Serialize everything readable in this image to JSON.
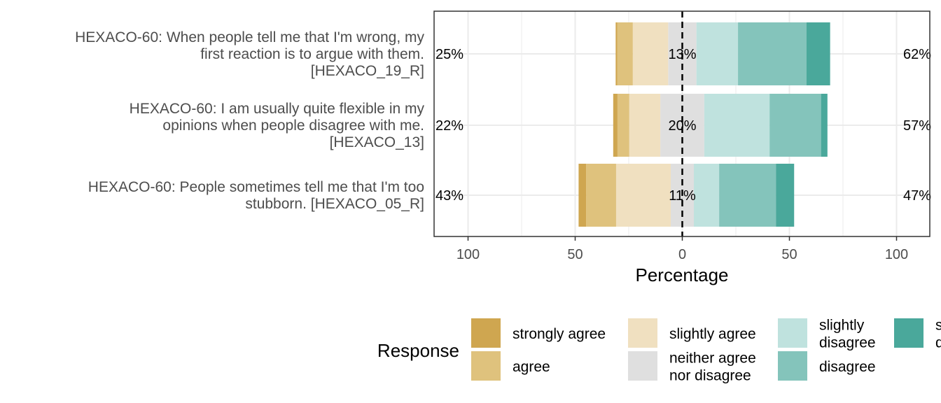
{
  "chart_data": {
    "type": "bar",
    "orientation": "horizontal",
    "stacked": "diverging",
    "xlabel": "Percentage",
    "xlim": [
      -100,
      100
    ],
    "x_ticks": [
      -100,
      -50,
      0,
      50,
      100
    ],
    "x_tick_labels": [
      "100",
      "50",
      "0",
      "50",
      "100"
    ],
    "grid": true,
    "legend": {
      "title": "Response",
      "position": "bottom",
      "entries": [
        {
          "label": "strongly agree",
          "color": "#cfa650"
        },
        {
          "label": "agree",
          "color": "#dfc27d"
        },
        {
          "label": "slightly agree",
          "color": "#f0e0c0"
        },
        {
          "label": "neither agree nor disagree",
          "color": "#dfdfdf"
        },
        {
          "label": "slightly disagree",
          "color": "#bfe2de"
        },
        {
          "label": "disagree",
          "color": "#84c4bb"
        },
        {
          "label": "strongly disagree",
          "color": "#4aa89b"
        }
      ]
    },
    "series_names": [
      "strongly agree",
      "agree",
      "slightly agree",
      "neither agree nor disagree",
      "slightly disagree",
      "disagree",
      "strongly disagree"
    ],
    "categories": [
      "HEXACO-60: When people tell me that I'm wrong, my first reaction is to argue with them. [HEXACO_19_R]",
      "HEXACO-60: I am usually quite flexible in my opinions when people disagree with me. [HEXACO_13]",
      "HEXACO-60: People sometimes tell me that I'm too stubborn. [HEXACO_05_R]"
    ],
    "category_lines": [
      [
        "HEXACO-60: When people tell me that I'm wrong, my",
        "first reaction is to argue with them.",
        "[HEXACO_19_R]"
      ],
      [
        "HEXACO-60: I am usually quite flexible in my",
        "opinions when people disagree with me.",
        "[HEXACO_13]"
      ],
      [
        "HEXACO-60: People sometimes tell me that I'm too",
        "stubborn. [HEXACO_05_R]"
      ]
    ],
    "values": [
      [
        0.7,
        7.3,
        16.5,
        13.2,
        19.4,
        32.0,
        11.0
      ],
      [
        2.0,
        5.5,
        14.5,
        20.5,
        30.5,
        24.0,
        3.0
      ],
      [
        3.5,
        14.0,
        25.5,
        10.8,
        11.8,
        26.5,
        8.5
      ]
    ],
    "left_labels": [
      "25%",
      "22%",
      "43%"
    ],
    "center_labels": [
      "13%",
      "20%",
      "11%"
    ],
    "right_labels": [
      "62%",
      "57%",
      "47%"
    ]
  }
}
